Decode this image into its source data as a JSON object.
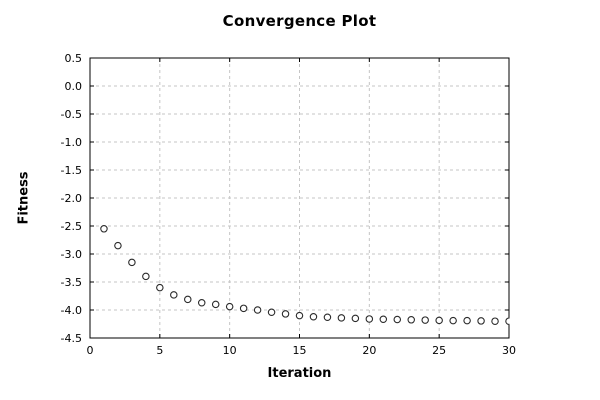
{
  "title": "Convergence Plot",
  "chart_data": {
    "type": "scatter",
    "title": "Convergence Plot",
    "xlabel": "Iteration",
    "ylabel": "Fitness",
    "x": [
      1,
      2,
      3,
      4,
      5,
      6,
      7,
      8,
      9,
      10,
      11,
      12,
      13,
      14,
      15,
      16,
      17,
      18,
      19,
      20,
      21,
      22,
      23,
      24,
      25,
      26,
      27,
      28,
      29,
      30
    ],
    "y": [
      -2.55,
      -2.85,
      -3.15,
      -3.4,
      -3.6,
      -3.73,
      -3.81,
      -3.87,
      -3.9,
      -3.94,
      -3.97,
      -4.0,
      -4.04,
      -4.07,
      -4.1,
      -4.12,
      -4.13,
      -4.14,
      -4.15,
      -4.16,
      -4.165,
      -4.17,
      -4.175,
      -4.18,
      -4.185,
      -4.19,
      -4.19,
      -4.195,
      -4.2,
      -4.2
    ],
    "xlim": [
      0,
      30
    ],
    "ylim": [
      -4.5,
      0.5
    ],
    "xticks": [
      0,
      5,
      10,
      15,
      20,
      25,
      30
    ],
    "yticks": [
      0.5,
      0.0,
      -0.5,
      -1.0,
      -1.5,
      -2.0,
      -2.5,
      -3.0,
      -3.5,
      -4.0,
      -4.5
    ],
    "grid": true,
    "legend": "none",
    "marker": {
      "shape": "open-circle",
      "color": "#2b2b2b",
      "fill": "#ffffff"
    },
    "colors": {
      "background": "#ffffff",
      "border": "#000000",
      "grid": "#c5c5c5",
      "text": "#000000"
    }
  }
}
